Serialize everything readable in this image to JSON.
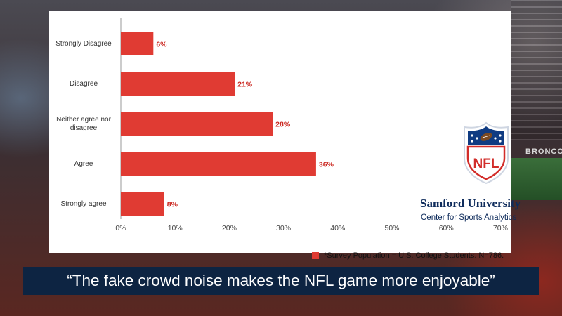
{
  "background": {
    "stadium_sign": "BRONCO"
  },
  "branding": {
    "logo_icon": "nfl-shield-icon",
    "logo_text": "NFL",
    "org_name": "Samford University",
    "org_subtitle": "Center for Sports Analytics"
  },
  "chart_data": {
    "type": "bar",
    "orientation": "horizontal",
    "categories": [
      "Strongly Disagree",
      "Disagree",
      "Neither agree nor disagree",
      "Agree",
      "Strongly agree"
    ],
    "values": [
      6,
      21,
      28,
      36,
      8
    ],
    "value_labels": [
      "6%",
      "21%",
      "28%",
      "36%",
      "8%"
    ],
    "xlim": [
      0,
      70
    ],
    "x_ticks": [
      "0%",
      "10%",
      "20%",
      "30%",
      "40%",
      "50%",
      "60%",
      "70%"
    ],
    "grid": false,
    "bar_color": "#e03b33",
    "label_color": "#cc2b24",
    "legend": {
      "label": "*Survey Population = U.S. College Students. N=786.",
      "placement": "bottom-right"
    }
  },
  "caption": "“The fake crowd noise makes the NFL game more enjoyable”"
}
